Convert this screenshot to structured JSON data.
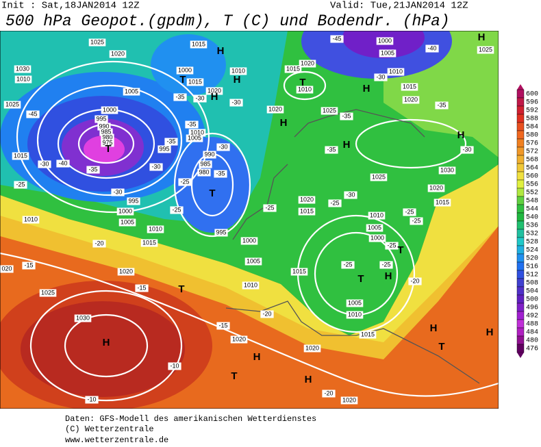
{
  "header": {
    "init": "Init : Sat,18JAN2014 12Z",
    "valid": "Valid: Tue,21JAN2014 12Z",
    "title": "500 hPa Geopot.(gpdm), T (C) und Bodendr. (hPa)"
  },
  "map": {
    "pressure_labels": [
      "1025",
      "1020",
      "1030",
      "1010",
      "1005",
      "1025",
      "1000",
      "995",
      "990",
      "985",
      "980",
      "975",
      "1015",
      "995",
      "1000",
      "1005",
      "1010",
      "1010",
      "1015",
      "1020",
      "1025",
      "1030",
      "1015",
      "1000",
      "1015",
      "1020",
      "1010",
      "1010",
      "1005",
      "995",
      "990",
      "985",
      "980",
      "995",
      "1000",
      "1005",
      "1010",
      "1015",
      "1020",
      "1020",
      "1015",
      "1010",
      "1025",
      "1000",
      "1005",
      "1010",
      "1015",
      "1020",
      "1025",
      "1030",
      "1025",
      "1020",
      "1015",
      "1020",
      "1015",
      "1010",
      "1005",
      "1000",
      "1005",
      "1010",
      "1015",
      "1020",
      "1020",
      "1020",
      "020"
    ],
    "temperature_labels": [
      "-45",
      "-40",
      "-35",
      "-30",
      "-25",
      "-30",
      "-30",
      "-25",
      "-25",
      "-30",
      "-35",
      "-35",
      "-30",
      "-35",
      "-30",
      "-35",
      "-25",
      "-30",
      "-25",
      "-35",
      "-30",
      "-35",
      "-40",
      "-45",
      "-30",
      "-35",
      "-25",
      "-25",
      "-25",
      "-25",
      "-25",
      "-20",
      "-20",
      "-15",
      "-15",
      "-15",
      "-20",
      "-10",
      "-10",
      "-20"
    ],
    "centers": [
      "H",
      "T",
      "H",
      "H",
      "T",
      "T",
      "T",
      "H",
      "H",
      "H",
      "H",
      "H",
      "T",
      "T",
      "H",
      "T",
      "H",
      "H",
      "T",
      "H",
      "T",
      "H",
      "H"
    ]
  },
  "legend": {
    "scale": [
      {
        "value": 600,
        "color": "#b01060"
      },
      {
        "value": 596,
        "color": "#c01848"
      },
      {
        "value": 592,
        "color": "#d02030"
      },
      {
        "value": 588,
        "color": "#e03020"
      },
      {
        "value": 584,
        "color": "#e85020"
      },
      {
        "value": 580,
        "color": "#f06820"
      },
      {
        "value": 576,
        "color": "#f08020"
      },
      {
        "value": 572,
        "color": "#f09828"
      },
      {
        "value": 568,
        "color": "#f0b030"
      },
      {
        "value": 564,
        "color": "#f0c838"
      },
      {
        "value": 560,
        "color": "#f0e040"
      },
      {
        "value": 556,
        "color": "#e0f040"
      },
      {
        "value": 552,
        "color": "#b0e840"
      },
      {
        "value": 548,
        "color": "#60d040"
      },
      {
        "value": 544,
        "color": "#30c040"
      },
      {
        "value": 540,
        "color": "#20b840"
      },
      {
        "value": 536,
        "color": "#20c070"
      },
      {
        "value": 532,
        "color": "#20c0a0"
      },
      {
        "value": 528,
        "color": "#20c8c8"
      },
      {
        "value": 524,
        "color": "#20b0e0"
      },
      {
        "value": 520,
        "color": "#2090f0"
      },
      {
        "value": 516,
        "color": "#2070f0"
      },
      {
        "value": 512,
        "color": "#3050e0"
      },
      {
        "value": 508,
        "color": "#4040d0"
      },
      {
        "value": 504,
        "color": "#5030c8"
      },
      {
        "value": 500,
        "color": "#6020c0"
      },
      {
        "value": 496,
        "color": "#8020c8"
      },
      {
        "value": 492,
        "color": "#a020d0"
      },
      {
        "value": 488,
        "color": "#c030d8"
      },
      {
        "value": 484,
        "color": "#b020c0"
      },
      {
        "value": 480,
        "color": "#901090"
      },
      {
        "value": 476,
        "color": "#600060"
      }
    ]
  },
  "footer": {
    "lines": [
      "Daten: GFS-Modell des amerikanischen Wetterdienstes",
      "(C) Wetterzentrale",
      "www.wetterzentrale.de"
    ]
  }
}
